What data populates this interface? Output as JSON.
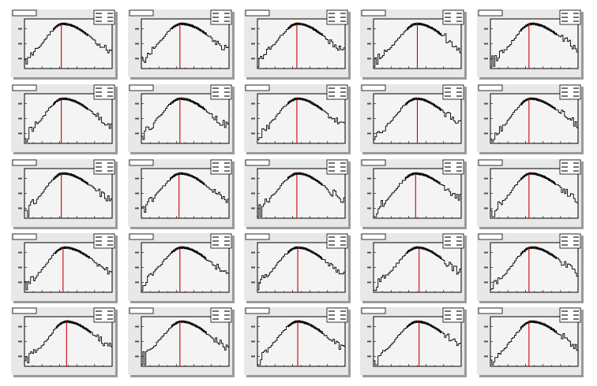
{
  "page": {
    "background": "#ffffff"
  },
  "style": {
    "pad_fill": "#e8e8e8",
    "pad_shadow": "#9a9a9a",
    "frame_fill": "#f4f4f4",
    "frame_stroke": "#000000",
    "hist_color": "#000000",
    "marker_color": "#cc0000",
    "label_fill": "#ffffff"
  },
  "grid": {
    "rows": 5,
    "cols": 5
  },
  "chart_data": [
    {
      "type": "histogram",
      "panel": 0,
      "title": "",
      "stats": [],
      "xlim": [
        0,
        1
      ],
      "ylim": [
        0,
        1
      ],
      "marker_x": 0.42,
      "peak": 0.44,
      "width_left": 0.2,
      "width_right": 0.34,
      "tail": 0.3,
      "seed": 11
    },
    {
      "type": "histogram",
      "panel": 1,
      "title": "",
      "stats": [],
      "xlim": [
        0,
        1
      ],
      "ylim": [
        0,
        1
      ],
      "marker_x": 0.44,
      "peak": 0.46,
      "width_left": 0.22,
      "width_right": 0.36,
      "tail": 0.34,
      "seed": 12
    },
    {
      "type": "histogram",
      "panel": 2,
      "title": "",
      "stats": [],
      "xlim": [
        0,
        1
      ],
      "ylim": [
        0,
        1
      ],
      "marker_x": 0.45,
      "peak": 0.46,
      "width_left": 0.22,
      "width_right": 0.34,
      "tail": 0.3,
      "seed": 13
    },
    {
      "type": "histogram",
      "panel": 3,
      "title": "",
      "stats": [],
      "xlim": [
        0,
        1
      ],
      "ylim": [
        0,
        1
      ],
      "marker_x": 0.5,
      "peak": 0.5,
      "width_left": 0.22,
      "width_right": 0.34,
      "tail": 0.34,
      "seed": 14
    },
    {
      "type": "histogram",
      "panel": 4,
      "title": "",
      "stats": [],
      "xlim": [
        0,
        1
      ],
      "ylim": [
        0,
        1
      ],
      "marker_x": 0.44,
      "peak": 0.47,
      "width_left": 0.2,
      "width_right": 0.36,
      "tail": 0.28,
      "seed": 15
    },
    {
      "type": "histogram",
      "panel": 5,
      "title": "",
      "stats": [],
      "xlim": [
        0,
        1
      ],
      "ylim": [
        0,
        1
      ],
      "marker_x": 0.42,
      "peak": 0.44,
      "width_left": 0.2,
      "width_right": 0.36,
      "tail": 0.32,
      "seed": 21
    },
    {
      "type": "histogram",
      "panel": 6,
      "title": "",
      "stats": [],
      "xlim": [
        0,
        1
      ],
      "ylim": [
        0,
        1
      ],
      "marker_x": 0.44,
      "peak": 0.45,
      "width_left": 0.22,
      "width_right": 0.34,
      "tail": 0.3,
      "seed": 22
    },
    {
      "type": "histogram",
      "panel": 7,
      "title": "",
      "stats": [],
      "xlim": [
        0,
        1
      ],
      "ylim": [
        0,
        1
      ],
      "marker_x": 0.45,
      "peak": 0.46,
      "width_left": 0.22,
      "width_right": 0.34,
      "tail": 0.28,
      "seed": 23
    },
    {
      "type": "histogram",
      "panel": 8,
      "title": "",
      "stats": [],
      "xlim": [
        0,
        1
      ],
      "ylim": [
        0,
        1
      ],
      "marker_x": 0.5,
      "peak": 0.49,
      "width_left": 0.22,
      "width_right": 0.34,
      "tail": 0.32,
      "seed": 24
    },
    {
      "type": "histogram",
      "panel": 9,
      "title": "",
      "stats": [],
      "xlim": [
        0,
        1
      ],
      "ylim": [
        0,
        1
      ],
      "marker_x": 0.44,
      "peak": 0.46,
      "width_left": 0.2,
      "width_right": 0.36,
      "tail": 0.26,
      "seed": 25
    },
    {
      "type": "histogram",
      "panel": 10,
      "title": "",
      "stats": [],
      "xlim": [
        0,
        1
      ],
      "ylim": [
        0,
        1
      ],
      "marker_x": 0.42,
      "peak": 0.44,
      "width_left": 0.2,
      "width_right": 0.36,
      "tail": 0.3,
      "seed": 31
    },
    {
      "type": "histogram",
      "panel": 11,
      "title": "",
      "stats": [],
      "xlim": [
        0,
        1
      ],
      "ylim": [
        0,
        1
      ],
      "marker_x": 0.43,
      "peak": 0.45,
      "width_left": 0.22,
      "width_right": 0.34,
      "tail": 0.32,
      "seed": 32
    },
    {
      "type": "histogram",
      "panel": 12,
      "title": "",
      "stats": [],
      "xlim": [
        0,
        1
      ],
      "ylim": [
        0,
        1
      ],
      "marker_x": 0.45,
      "peak": 0.46,
      "width_left": 0.22,
      "width_right": 0.34,
      "tail": 0.3,
      "seed": 33
    },
    {
      "type": "histogram",
      "panel": 13,
      "title": "",
      "stats": [],
      "xlim": [
        0,
        1
      ],
      "ylim": [
        0,
        1
      ],
      "marker_x": 0.48,
      "peak": 0.48,
      "width_left": 0.22,
      "width_right": 0.36,
      "tail": 0.34,
      "seed": 34
    },
    {
      "type": "histogram",
      "panel": 14,
      "title": "",
      "stats": [],
      "xlim": [
        0,
        1
      ],
      "ylim": [
        0,
        1
      ],
      "marker_x": 0.44,
      "peak": 0.46,
      "width_left": 0.2,
      "width_right": 0.36,
      "tail": 0.28,
      "seed": 35
    },
    {
      "type": "histogram",
      "panel": 15,
      "title": "",
      "stats": [],
      "xlim": [
        0,
        1
      ],
      "ylim": [
        0,
        1
      ],
      "marker_x": 0.44,
      "peak": 0.46,
      "width_left": 0.2,
      "width_right": 0.36,
      "tail": 0.3,
      "seed": 41
    },
    {
      "type": "histogram",
      "panel": 16,
      "title": "",
      "stats": [],
      "xlim": [
        0,
        1
      ],
      "ylim": [
        0,
        1
      ],
      "marker_x": 0.44,
      "peak": 0.46,
      "width_left": 0.22,
      "width_right": 0.34,
      "tail": 0.3,
      "seed": 42
    },
    {
      "type": "histogram",
      "panel": 17,
      "title": "",
      "stats": [],
      "xlim": [
        0,
        1
      ],
      "ylim": [
        0,
        1
      ],
      "marker_x": 0.46,
      "peak": 0.46,
      "width_left": 0.22,
      "width_right": 0.34,
      "tail": 0.32,
      "seed": 43
    },
    {
      "type": "histogram",
      "panel": 18,
      "title": "",
      "stats": [],
      "xlim": [
        0,
        1
      ],
      "ylim": [
        0,
        1
      ],
      "marker_x": 0.52,
      "peak": 0.5,
      "width_left": 0.22,
      "width_right": 0.34,
      "tail": 0.3,
      "seed": 44
    },
    {
      "type": "histogram",
      "panel": 19,
      "title": "",
      "stats": [],
      "xlim": [
        0,
        1
      ],
      "ylim": [
        0,
        1
      ],
      "marker_x": 0.44,
      "peak": 0.47,
      "width_left": 0.2,
      "width_right": 0.36,
      "tail": 0.3,
      "seed": 45
    },
    {
      "type": "histogram",
      "panel": 20,
      "title": "",
      "stats": [],
      "xlim": [
        0,
        1
      ],
      "ylim": [
        0,
        1
      ],
      "marker_x": 0.48,
      "peak": 0.48,
      "width_left": 0.2,
      "width_right": 0.34,
      "tail": 0.3,
      "seed": 51
    },
    {
      "type": "histogram",
      "panel": 21,
      "title": "",
      "stats": [],
      "xlim": [
        0,
        1
      ],
      "ylim": [
        0,
        1
      ],
      "marker_x": 0.44,
      "peak": 0.46,
      "width_left": 0.22,
      "width_right": 0.34,
      "tail": 0.32,
      "seed": 52
    },
    {
      "type": "histogram",
      "panel": 22,
      "title": "",
      "stats": [],
      "xlim": [
        0,
        1
      ],
      "ylim": [
        0,
        1
      ],
      "marker_x": 0.46,
      "peak": 0.46,
      "width_left": 0.22,
      "width_right": 0.34,
      "tail": 0.3,
      "seed": 53
    },
    {
      "type": "histogram",
      "panel": 23,
      "title": "",
      "stats": [],
      "xlim": [
        0,
        1
      ],
      "ylim": [
        0,
        1
      ],
      "marker_x": 0.52,
      "peak": 0.5,
      "width_left": 0.22,
      "width_right": 0.34,
      "tail": 0.3,
      "seed": 54
    },
    {
      "type": "histogram",
      "panel": 24,
      "title": "",
      "stats": [],
      "xlim": [
        0,
        1
      ],
      "ylim": [
        0,
        1
      ],
      "marker_x": 0.44,
      "peak": 0.47,
      "width_left": 0.2,
      "width_right": 0.36,
      "tail": 0.28,
      "seed": 55
    }
  ]
}
